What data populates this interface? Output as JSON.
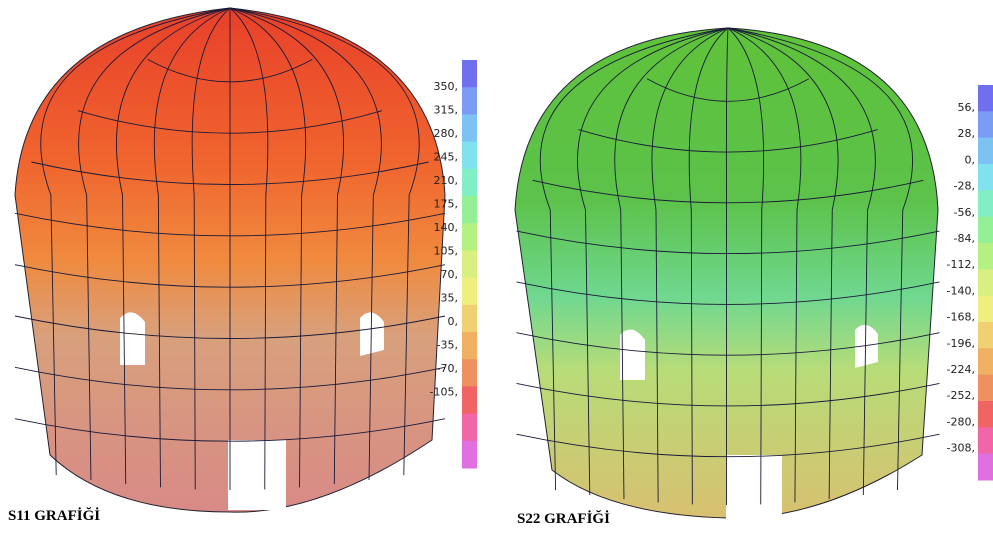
{
  "panels": [
    {
      "caption": "S11 GRAFİĞİ",
      "legend": {
        "labels": [
          "350,",
          "315,",
          "280,",
          "245,",
          "210,",
          "175,",
          "140,",
          "105,",
          "70,",
          "35,",
          "0,",
          "-35,",
          "-70,",
          "-105,"
        ],
        "colors": [
          "#6f6ff0",
          "#7a9cf4",
          "#7ec2f4",
          "#80e2ee",
          "#80f0c4",
          "#94f094",
          "#b4f082",
          "#d8f082",
          "#f0ee80",
          "#f0d070",
          "#f0b062",
          "#f09060",
          "#f06464",
          "#f066a8",
          "#e070e0"
        ]
      }
    },
    {
      "caption": "S22 GRAFİĞİ",
      "legend": {
        "labels": [
          "56,",
          "28,",
          "0,",
          "-28,",
          "-56,",
          "-84,",
          "-112,",
          "-140,",
          "-168,",
          "-196,",
          "-224,",
          "-252,",
          "-280,",
          "-308,"
        ],
        "colors": [
          "#6f6ff0",
          "#7a9cf4",
          "#7ec2f4",
          "#80e2ee",
          "#80f0c4",
          "#94f094",
          "#b4f082",
          "#d8f082",
          "#f0ee80",
          "#f0d070",
          "#f0b062",
          "#f09060",
          "#f06464",
          "#f066a8",
          "#e070e0"
        ]
      }
    }
  ]
}
